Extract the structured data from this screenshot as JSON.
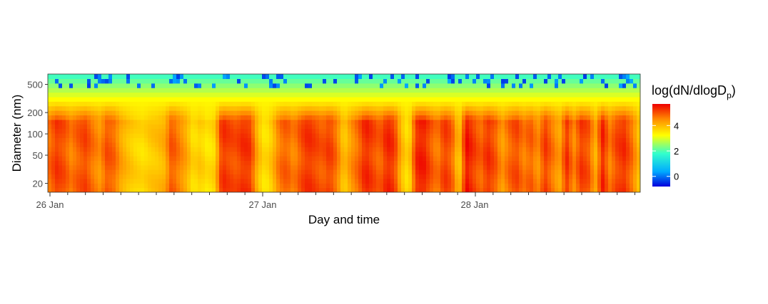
{
  "chart_data": {
    "type": "heatmap",
    "title": "",
    "xlabel": "Day and time",
    "ylabel": "Diameter (nm)",
    "y_scale": "log",
    "ylim": [
      15,
      700
    ],
    "x_ticks": [
      "26 Jan",
      "27 Jan",
      "28 Jan"
    ],
    "y_ticks": [
      20,
      50,
      100,
      200,
      500
    ],
    "colorbar": {
      "label": "log(dN/dlogD",
      "label_subscript": "p",
      "label_close": ")",
      "range": [
        -0.8,
        5.7
      ],
      "ticks": [
        0,
        2,
        4
      ],
      "colors": [
        "#0000dd",
        "#00aaff",
        "#33ffcc",
        "#ffff00",
        "#ff8800",
        "#ee0000"
      ]
    },
    "intensity_profile": [
      4.8,
      5.2,
      5.0,
      4.6,
      4.9,
      5.1,
      4.7,
      4.4,
      5.0,
      4.8,
      4.2,
      3.9,
      3.7,
      3.6,
      3.8,
      3.9,
      4.1,
      5.0,
      4.6,
      4.2,
      3.6,
      3.8,
      3.5,
      3.7,
      5.3,
      5.1,
      5.0,
      5.3,
      5.2,
      4.0,
      3.5,
      3.9,
      4.7,
      4.9,
      4.5,
      5.0,
      5.3,
      5.1,
      4.9,
      5.2,
      4.7,
      3.8,
      4.4,
      4.8,
      5.4,
      5.1,
      4.8,
      5.4,
      5.2,
      4.0,
      3.5,
      5.3,
      5.5,
      5.0,
      4.6,
      5.2,
      4.9,
      3.7,
      5.6,
      5.2,
      4.8,
      5.3,
      5.0,
      4.3,
      4.8,
      5.1,
      4.6,
      4.9,
      4.4,
      5.2,
      4.7,
      4.2,
      5.3,
      4.5,
      5.2,
      5.0,
      4.1,
      5.4,
      4.6,
      5.1,
      5.3,
      4.8,
      4.0
    ]
  }
}
